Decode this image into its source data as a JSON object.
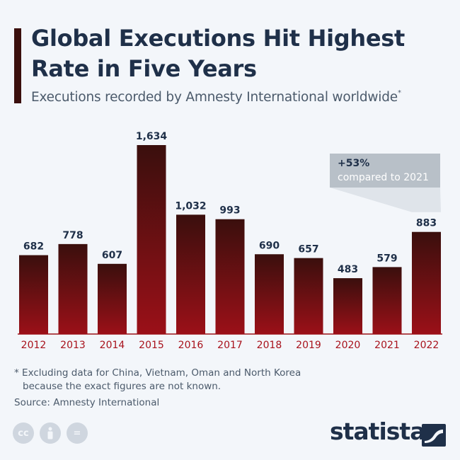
{
  "header": {
    "title": "Global Executions Hit Highest Rate in Five Years",
    "subtitle": "Executions recorded by Amnesty International worldwide",
    "subtitle_marker": "*"
  },
  "callout": {
    "pct": "+53%",
    "text": "compared to 2021"
  },
  "footer": {
    "note_line1": "* Excluding data for China, Vietnam, Oman and North Korea",
    "note_line2": "because the exact figures are not known.",
    "source": "Source: Amnesty International",
    "brand": "statista"
  },
  "colors": {
    "bar_top": "#3a0f0d",
    "bar_bottom": "#9b1018",
    "year_label": "#a8121c",
    "value_label": "#1f3049",
    "callout_box": "#b8c0c8",
    "callout_shade": "#dfe4ea"
  },
  "icons": [
    "cc-icon",
    "person-icon",
    "equals-icon",
    "statista-logo-icon"
  ],
  "chart_data": {
    "type": "bar",
    "title": "Global Executions Hit Highest Rate in Five Years",
    "subtitle": "Executions recorded by Amnesty International worldwide",
    "categories": [
      "2012",
      "2013",
      "2014",
      "2015",
      "2016",
      "2017",
      "2018",
      "2019",
      "2020",
      "2021",
      "2022"
    ],
    "values": [
      682,
      778,
      607,
      1634,
      1032,
      993,
      690,
      657,
      483,
      579,
      883
    ],
    "labels": [
      "682",
      "778",
      "607",
      "1,634",
      "1,032",
      "993",
      "690",
      "657",
      "483",
      "579",
      "883"
    ],
    "ylim": [
      0,
      1634
    ],
    "grid": false,
    "legend": "none"
  }
}
